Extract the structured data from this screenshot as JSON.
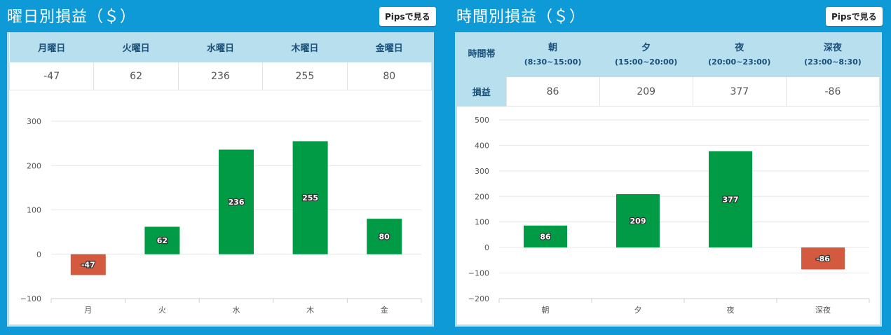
{
  "colors": {
    "positive": "#019b45",
    "negative": "#d35a3f",
    "header_bg": "#b7dfee",
    "page_bg": "#0d9ad6"
  },
  "left": {
    "title": "曜日別損益（＄）",
    "pips_button": "Pipsで見る",
    "table": {
      "headers": [
        "月曜日",
        "火曜日",
        "水曜日",
        "木曜日",
        "金曜日"
      ],
      "values": [
        "-47",
        "62",
        "236",
        "255",
        "80"
      ]
    }
  },
  "right": {
    "title": "時間別損益（＄）",
    "pips_button": "Pipsで見る",
    "table": {
      "row_header_top": "時間帯",
      "row_header_value": "損益",
      "headers": [
        {
          "name": "朝",
          "range": "(8:30~15:00)"
        },
        {
          "name": "夕",
          "range": "(15:00~20:00)"
        },
        {
          "name": "夜",
          "range": "(20:00~23:00)"
        },
        {
          "name": "深夜",
          "range": "(23:00~8:30)"
        }
      ],
      "values": [
        "86",
        "209",
        "377",
        "-86"
      ]
    }
  },
  "chart_data": [
    {
      "type": "bar",
      "title": "曜日別損益（＄）",
      "categories": [
        "月",
        "火",
        "水",
        "木",
        "金"
      ],
      "values": [
        -47,
        62,
        236,
        255,
        80
      ],
      "labels": [
        "-47",
        "62",
        "236",
        "255",
        "80"
      ],
      "ylim": [
        -100,
        300
      ],
      "yticks": [
        300,
        200,
        100,
        0,
        -100
      ],
      "ytick_labels": [
        "300",
        "200",
        "100",
        "0",
        "−100"
      ],
      "grid": true
    },
    {
      "type": "bar",
      "title": "時間別損益（＄）",
      "categories": [
        "朝",
        "夕",
        "夜",
        "深夜"
      ],
      "values": [
        86,
        209,
        377,
        -86
      ],
      "labels": [
        "86",
        "209",
        "377",
        "-86"
      ],
      "ylim": [
        -200,
        500
      ],
      "yticks": [
        500,
        400,
        300,
        200,
        100,
        0,
        -100,
        -200
      ],
      "ytick_labels": [
        "500",
        "400",
        "300",
        "200",
        "100",
        "0",
        "−100",
        "−200"
      ],
      "grid": true
    }
  ]
}
